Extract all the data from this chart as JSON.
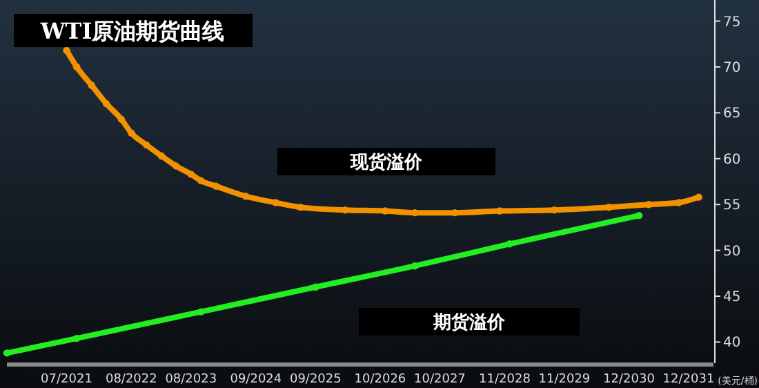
{
  "chart_data": {
    "type": "line",
    "title": "WTI原油期货曲线",
    "ylabel": "(美元/桶)",
    "annotations": [
      "现货溢价",
      "期货溢价"
    ],
    "xlim": [
      "2020-07",
      "2032-05"
    ],
    "ylim": [
      37.7,
      77.3
    ],
    "xticks": [
      {
        "value": "2021-07",
        "label": "07/2021"
      },
      {
        "value": "2022-08",
        "label": "08/2022"
      },
      {
        "value": "2023-08",
        "label": "08/2023"
      },
      {
        "value": "2024-09",
        "label": "09/2024"
      },
      {
        "value": "2025-09",
        "label": "09/2025"
      },
      {
        "value": "2026-10",
        "label": "10/2026"
      },
      {
        "value": "2027-10",
        "label": "10/2027"
      },
      {
        "value": "2028-11",
        "label": "11/2028"
      },
      {
        "value": "2029-11",
        "label": "11/2029"
      },
      {
        "value": "2030-12",
        "label": "12/2030"
      },
      {
        "value": "2031-12",
        "label": "12/2031"
      }
    ],
    "yticks": [
      40,
      45,
      50,
      55,
      60,
      65,
      70,
      75
    ],
    "grid": false,
    "marker": "circle",
    "line_style": "solid",
    "series": [
      {
        "color": "#f39200",
        "x": [
          "2021-07",
          "2021-09",
          "2021-12",
          "2022-03",
          "2022-06",
          "2022-08",
          "2022-11",
          "2023-02",
          "2023-05",
          "2023-08",
          "2023-10",
          "2024-01",
          "2024-07",
          "2025-01",
          "2025-06",
          "2026-03",
          "2026-11",
          "2027-05",
          "2028-01",
          "2028-10",
          "2029-09",
          "2030-08",
          "2031-04",
          "2031-10",
          "2032-02"
        ],
        "values": [
          71.8,
          70.0,
          68.0,
          66.0,
          64.3,
          62.8,
          61.5,
          60.3,
          59.2,
          58.3,
          57.6,
          57.0,
          55.9,
          55.2,
          54.7,
          54.4,
          54.3,
          54.1,
          54.1,
          54.3,
          54.4,
          54.7,
          55.0,
          55.2,
          55.8
        ]
      },
      {
        "color": "#22ee22",
        "x": [
          "2020-07",
          "2021-09",
          "2023-10",
          "2025-09",
          "2027-05",
          "2028-12",
          "2031-02"
        ],
        "values": [
          38.8,
          40.4,
          43.3,
          46.0,
          48.3,
          50.7,
          53.8
        ]
      }
    ]
  }
}
